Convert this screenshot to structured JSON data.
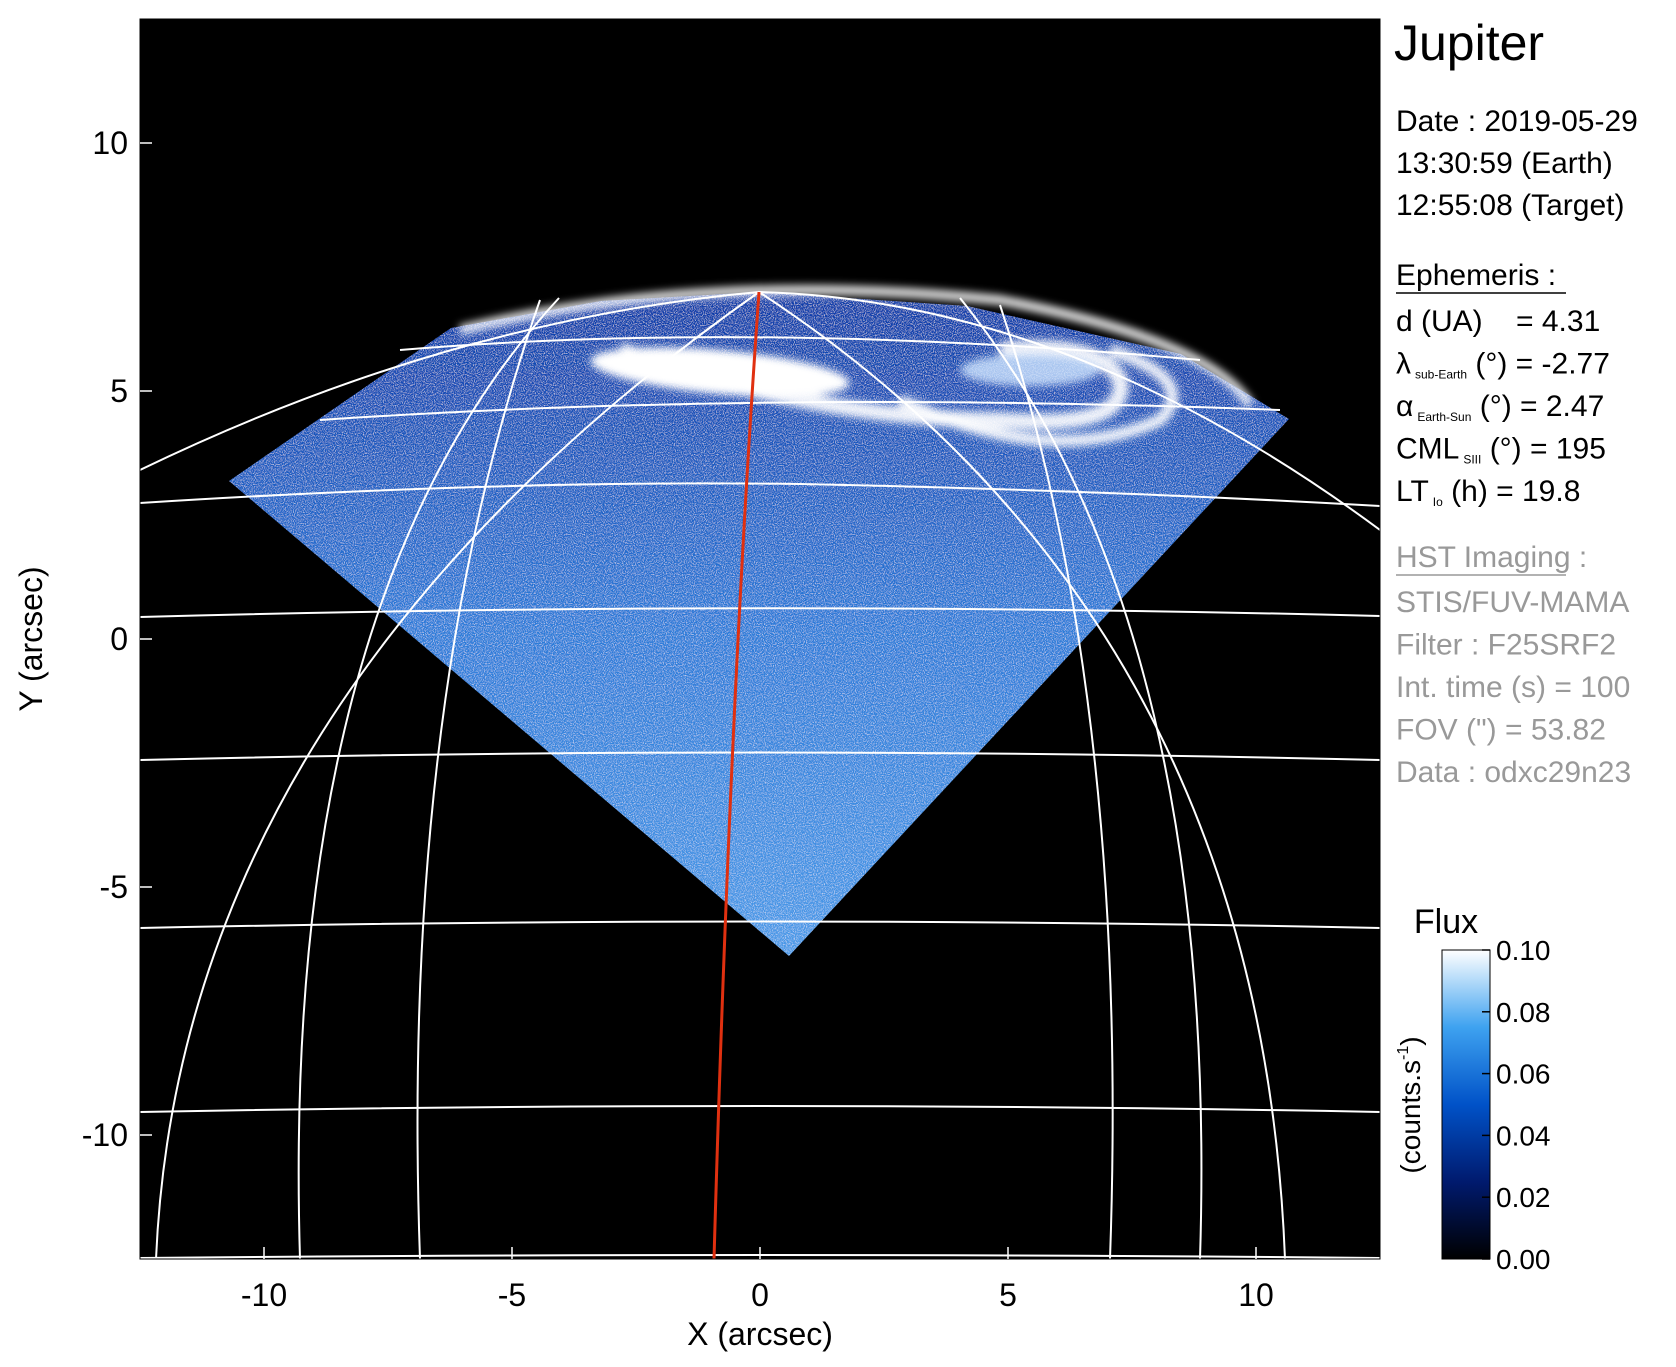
{
  "chart_data": {
    "type": "image",
    "title": "Jupiter",
    "x_label": "X (arcsec)",
    "y_label": "Y (arcsec)",
    "xlim": [
      -12.5,
      12.5
    ],
    "ylim": [
      -12.5,
      12.5
    ],
    "xticks": [
      -10,
      -5,
      0,
      5,
      10
    ],
    "yticks": [
      -10,
      -5,
      0,
      5,
      10
    ],
    "colorbar": {
      "title": "Flux",
      "unit_base": "(counts.s",
      "unit_exp": "-1",
      "unit_close": ")",
      "clim": [
        0,
        0.1
      ],
      "ticks": [
        {
          "value": 0,
          "label": "0.00"
        },
        {
          "value": 0.02,
          "label": "0.02"
        },
        {
          "value": 0.04,
          "label": "0.04"
        },
        {
          "value": 0.06,
          "label": "0.06"
        },
        {
          "value": 0.08,
          "label": "0.08"
        },
        {
          "value": 0.1,
          "label": "0.10"
        }
      ],
      "colormap": [
        "#000000",
        "#001a6e",
        "#0052c8",
        "#3ea2f0",
        "#ffffff"
      ]
    },
    "info": {
      "date_lines": [
        "Date : 2019-05-29",
        "13:30:59 (Earth)",
        "12:55:08 (Target)"
      ],
      "ephemeris_title": "Ephemeris :",
      "ephemeris": [
        {
          "main": "d (UA)    = 4.31"
        },
        {
          "main": "λ",
          "sub": "sub-Earth",
          "rest": " (°) = -2.77"
        },
        {
          "main": "α",
          "sub": "Earth-Sun",
          "rest": " (°) = 2.47"
        },
        {
          "main": "CML",
          "sub": "SIII",
          "rest": " (°) = 195"
        },
        {
          "main": "LT",
          "sub": "Io",
          "rest": " (h) = 19.8"
        }
      ],
      "instrument_title": "HST Imaging :",
      "instrument": [
        "STIS/FUV-MAMA",
        "Filter : F25SRF2",
        "Int. time (s) = 100",
        "FOV (\") = 53.82",
        "Data : odxc29n23"
      ]
    }
  }
}
